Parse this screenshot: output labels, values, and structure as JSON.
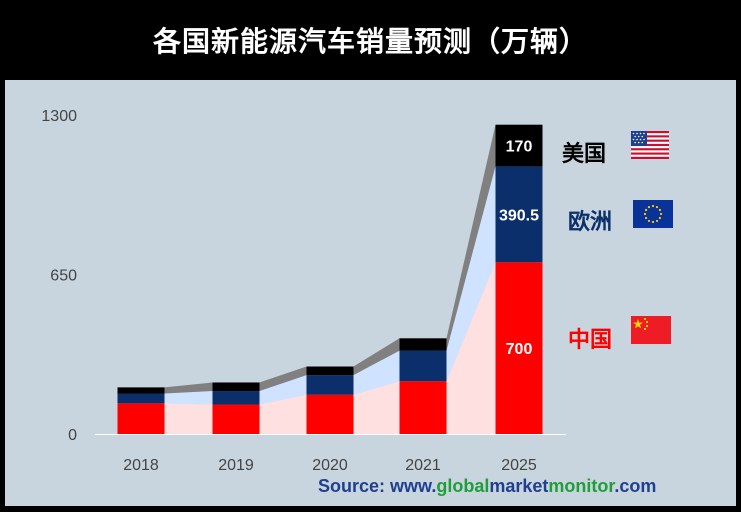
{
  "title": "各国新能源汽车销量预测（万辆）",
  "source": {
    "prefix": "Source: www.",
    "part1": "global",
    "part2": "market",
    "part3": "monitor",
    "suffix": ".com"
  },
  "colors": {
    "china": "#ff0000",
    "europe": "#0a2f6b",
    "usa": "#000000",
    "china_fill": "#ffe0e0",
    "europe_fill": "#cfe2ff",
    "usa_fill": "#808080"
  },
  "legend": [
    {
      "name": "美国",
      "color": "#000000",
      "flag": "us-flag-icon"
    },
    {
      "name": "欧洲",
      "color": "#0a2f6b",
      "flag": "eu-flag-icon"
    },
    {
      "name": "中国",
      "color": "#ff0000",
      "flag": "china-flag-icon"
    }
  ],
  "chart_data": {
    "type": "bar",
    "stacked": true,
    "title": "各国新能源汽车销量预测（万辆）",
    "categories": [
      "2018",
      "2019",
      "2020",
      "2021",
      "2025"
    ],
    "yticks": [
      "0",
      "650",
      "1300"
    ],
    "ylim": [
      0,
      1300
    ],
    "grid": false,
    "legend_position": "right",
    "series": [
      {
        "name": "中国",
        "color": "#ff0000",
        "values": [
          125,
          120,
          160,
          215,
          700
        ]
      },
      {
        "name": "欧洲",
        "color": "#0a2f6b",
        "values": [
          40,
          55,
          80,
          125,
          390.5
        ]
      },
      {
        "name": "美国",
        "color": "#000000",
        "values": [
          25,
          35,
          35,
          50,
          170
        ]
      }
    ],
    "data_labels": [
      {
        "category": "2025",
        "series": "中国",
        "text": "700"
      },
      {
        "category": "2025",
        "series": "欧洲",
        "text": "390.5"
      },
      {
        "category": "2025",
        "series": "美国",
        "text": "170"
      }
    ]
  }
}
